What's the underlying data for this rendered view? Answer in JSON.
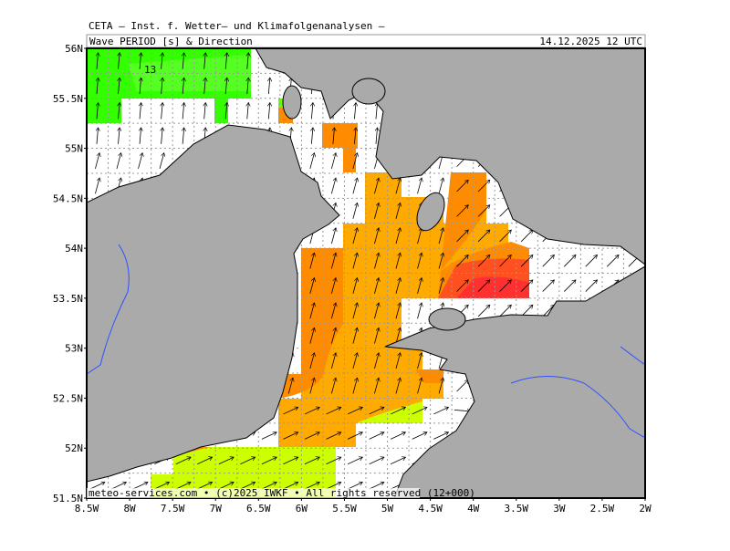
{
  "header": {
    "title": "CETA – Inst. f. Wetter– und Klimafolgenanalysen –",
    "subtitle": "Wave PERIOD [s] & Direction",
    "timestamp": "14.12.2025 12 UTC"
  },
  "map": {
    "contour_label": "13",
    "lat_labels": [
      "56N",
      "55.5N",
      "55N",
      "54.5N",
      "54N",
      "53.5N",
      "53N",
      "52.5N",
      "52N",
      "51.5N"
    ],
    "lon_labels": [
      "8.5W",
      "8W",
      "7.5W",
      "7W",
      "6.5W",
      "6W",
      "5.5W",
      "5W",
      "4.5W",
      "4W",
      "3.5W",
      "3W",
      "2.5W",
      "2W"
    ]
  },
  "footer": {
    "credit": "meteo-services.com • (c)2025 IWKF • All rights reserved (12+000)"
  }
}
